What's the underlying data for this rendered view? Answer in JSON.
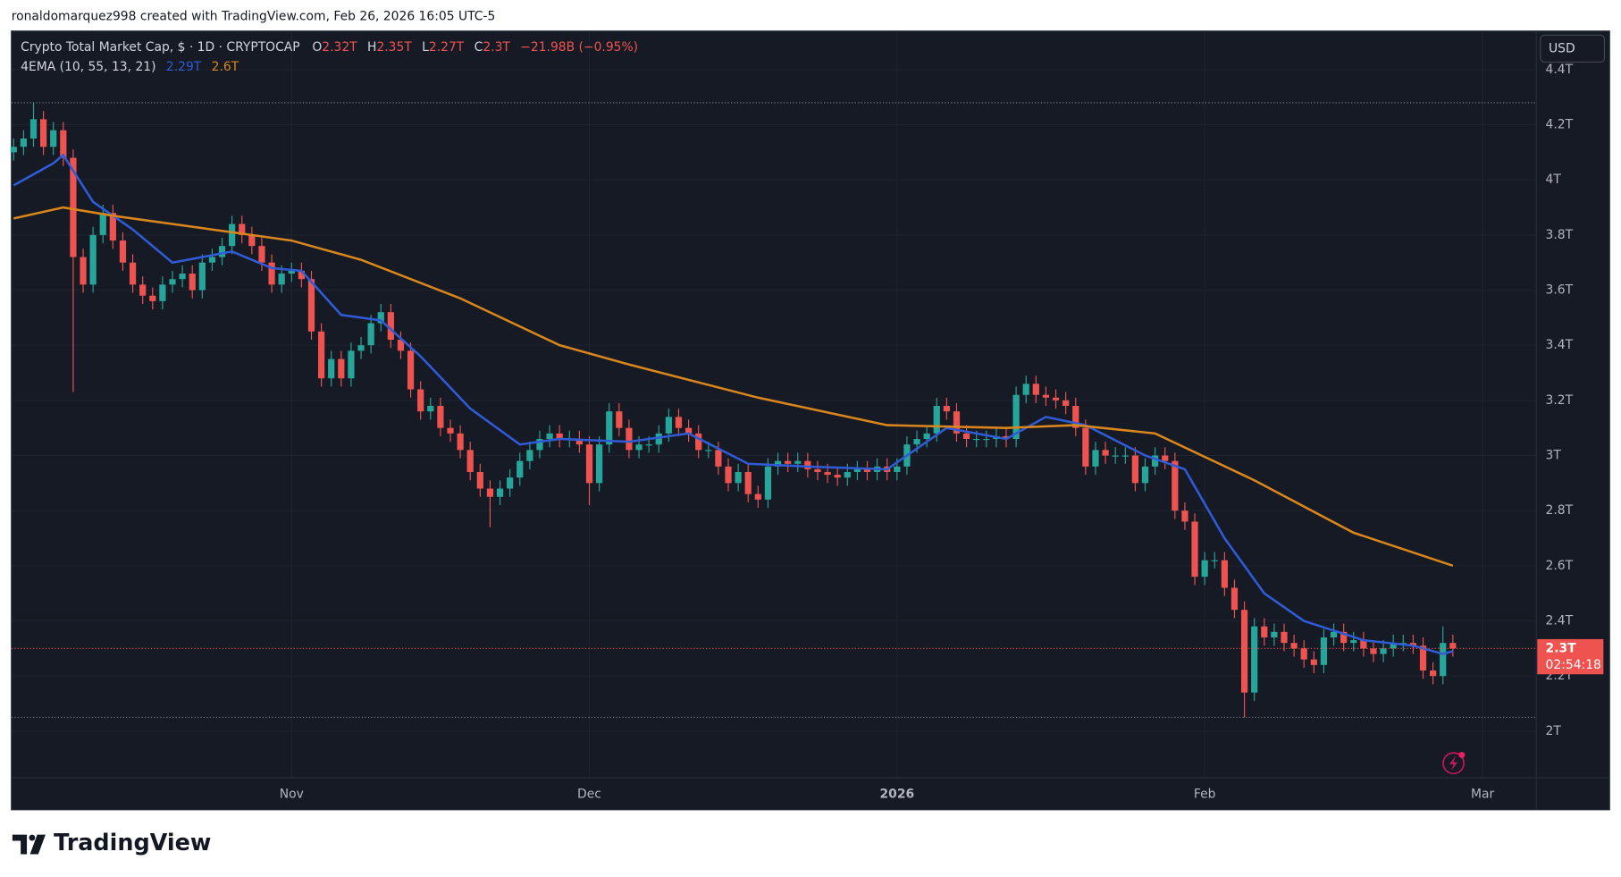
{
  "header": {
    "text": "ronaldomarquez998 created with TradingView.com, Feb 26, 2026 16:05 UTC-5"
  },
  "footer": {
    "text": "TradingView"
  },
  "chart_data": {
    "type": "candlestick",
    "title": "Crypto Total Market Cap, $ · 1D · CRYPTOCAP",
    "ohlc_legend": [
      {
        "label": "O",
        "value": "2.32T"
      },
      {
        "label": "H",
        "value": "2.35T"
      },
      {
        "label": "L",
        "value": "2.27T"
      },
      {
        "label": "C",
        "value": "2.3T"
      }
    ],
    "change": "−21.98B (−0.95%)",
    "indicator": "4EMA (10, 55, 13, 21)",
    "currency": "USD",
    "last_price_label": "2.3T",
    "countdown": "02:54:18",
    "up_color": "#26a69a",
    "down_color": "#ef5350",
    "open": [
      4.1,
      4.12,
      4.15,
      4.22,
      4.12,
      4.18,
      4.08,
      3.72,
      3.62,
      3.8,
      3.88,
      3.78,
      3.7,
      3.62,
      3.58,
      3.56,
      3.62,
      3.64,
      3.66,
      3.6,
      3.7,
      3.72,
      3.76,
      3.84,
      3.8,
      3.76,
      3.7,
      3.62,
      3.66,
      3.67,
      3.64,
      3.45,
      3.28,
      3.35,
      3.28,
      3.38,
      3.4,
      3.48,
      3.52,
      3.42,
      3.38,
      3.24,
      3.16,
      3.18,
      3.1,
      3.08,
      3.02,
      2.94,
      2.88,
      2.85,
      2.88,
      2.92,
      2.98,
      3.02,
      3.06,
      3.08,
      3.06,
      3.06,
      3.04,
      2.9,
      3.04,
      3.16,
      3.1,
      3.02,
      3.04,
      3.04,
      3.08,
      3.14,
      3.1,
      3.08,
      3.02,
      3.02,
      2.96,
      2.9,
      2.94,
      2.86,
      2.84,
      2.96,
      2.98,
      2.97,
      2.98,
      2.95,
      2.94,
      2.93,
      2.92,
      2.94,
      2.95,
      2.94,
      2.96,
      2.94,
      2.96,
      3.04,
      3.06,
      3.08,
      3.18,
      3.16,
      3.08,
      3.06,
      3.06,
      3.06,
      3.07,
      3.06,
      3.22,
      3.26,
      3.22,
      3.21,
      3.2,
      3.18,
      3.1,
      2.96,
      3.02,
      3.0,
      3.0,
      3.0,
      2.9,
      2.96,
      3.0,
      2.98,
      2.8,
      2.76,
      2.56,
      2.62,
      2.62,
      2.52,
      2.44,
      2.14,
      2.38,
      2.34,
      2.36,
      2.32,
      2.3,
      2.26,
      2.24,
      2.34,
      2.36,
      2.32,
      2.33,
      2.3,
      2.28,
      2.3,
      2.32,
      2.32,
      2.31,
      2.22,
      2.2,
      2.32
    ],
    "high": [
      4.15,
      4.18,
      4.28,
      4.25,
      4.21,
      4.21,
      4.11,
      3.75,
      3.83,
      3.91,
      3.91,
      3.81,
      3.73,
      3.65,
      3.61,
      3.65,
      3.67,
      3.69,
      3.69,
      3.73,
      3.75,
      3.79,
      3.87,
      3.87,
      3.83,
      3.79,
      3.73,
      3.69,
      3.7,
      3.7,
      3.67,
      3.48,
      3.38,
      3.38,
      3.41,
      3.43,
      3.51,
      3.55,
      3.55,
      3.45,
      3.41,
      3.27,
      3.21,
      3.21,
      3.13,
      3.11,
      3.05,
      2.97,
      2.91,
      2.91,
      2.95,
      3.01,
      3.05,
      3.09,
      3.11,
      3.11,
      3.09,
      3.09,
      3.07,
      3.07,
      3.19,
      3.19,
      3.13,
      3.07,
      3.07,
      3.11,
      3.17,
      3.17,
      3.13,
      3.11,
      3.05,
      3.05,
      2.99,
      2.97,
      2.97,
      2.89,
      2.99,
      3.01,
      3.01,
      3.01,
      3.01,
      2.98,
      2.97,
      2.96,
      2.97,
      2.98,
      2.98,
      2.99,
      2.99,
      2.99,
      3.07,
      3.09,
      3.11,
      3.21,
      3.21,
      3.19,
      3.11,
      3.09,
      3.09,
      3.1,
      3.1,
      3.25,
      3.29,
      3.29,
      3.25,
      3.24,
      3.23,
      3.21,
      3.13,
      3.05,
      3.05,
      3.03,
      3.03,
      3.03,
      2.99,
      3.03,
      3.03,
      3.01,
      2.83,
      2.79,
      2.65,
      2.65,
      2.65,
      2.55,
      2.47,
      2.41,
      2.41,
      2.39,
      2.39,
      2.35,
      2.33,
      2.29,
      2.37,
      2.39,
      2.39,
      2.36,
      2.36,
      2.33,
      2.33,
      2.35,
      2.35,
      2.35,
      2.34,
      2.25,
      2.38,
      2.35
    ],
    "low": [
      4.07,
      4.09,
      4.12,
      4.09,
      4.09,
      4.05,
      3.23,
      3.59,
      3.59,
      3.77,
      3.75,
      3.67,
      3.59,
      3.55,
      3.53,
      3.53,
      3.59,
      3.61,
      3.57,
      3.57,
      3.67,
      3.69,
      3.73,
      3.77,
      3.73,
      3.67,
      3.59,
      3.59,
      3.63,
      3.61,
      3.42,
      3.25,
      3.25,
      3.25,
      3.25,
      3.35,
      3.37,
      3.45,
      3.39,
      3.35,
      3.21,
      3.13,
      3.13,
      3.07,
      3.05,
      2.99,
      2.91,
      2.85,
      2.74,
      2.82,
      2.85,
      2.89,
      2.95,
      2.99,
      3.03,
      3.03,
      3.03,
      3.01,
      2.82,
      2.87,
      3.01,
      3.07,
      2.99,
      2.99,
      3.01,
      3.01,
      3.05,
      3.07,
      3.05,
      2.99,
      2.99,
      2.93,
      2.87,
      2.87,
      2.83,
      2.81,
      2.81,
      2.93,
      2.94,
      2.94,
      2.92,
      2.91,
      2.9,
      2.89,
      2.89,
      2.91,
      2.91,
      2.91,
      2.91,
      2.91,
      2.93,
      3.01,
      3.03,
      3.05,
      3.13,
      3.05,
      3.03,
      3.03,
      3.03,
      3.03,
      3.03,
      3.03,
      3.19,
      3.19,
      3.18,
      3.17,
      3.15,
      3.07,
      2.93,
      2.93,
      2.97,
      2.97,
      2.97,
      2.87,
      2.87,
      2.93,
      2.95,
      2.77,
      2.73,
      2.53,
      2.53,
      2.59,
      2.49,
      2.41,
      2.05,
      2.11,
      2.31,
      2.31,
      2.29,
      2.27,
      2.23,
      2.21,
      2.21,
      2.31,
      2.29,
      2.29,
      2.27,
      2.25,
      2.25,
      2.27,
      2.29,
      2.28,
      2.19,
      2.17,
      2.17,
      2.27
    ],
    "close": [
      4.12,
      4.15,
      4.22,
      4.12,
      4.18,
      4.08,
      3.72,
      3.62,
      3.8,
      3.88,
      3.78,
      3.7,
      3.62,
      3.58,
      3.56,
      3.62,
      3.64,
      3.66,
      3.6,
      3.7,
      3.72,
      3.76,
      3.84,
      3.8,
      3.76,
      3.7,
      3.62,
      3.66,
      3.67,
      3.64,
      3.45,
      3.28,
      3.35,
      3.28,
      3.38,
      3.4,
      3.48,
      3.52,
      3.42,
      3.38,
      3.24,
      3.16,
      3.18,
      3.1,
      3.08,
      3.02,
      2.94,
      2.88,
      2.85,
      2.88,
      2.92,
      2.98,
      3.02,
      3.06,
      3.08,
      3.06,
      3.06,
      3.04,
      2.9,
      3.04,
      3.16,
      3.1,
      3.02,
      3.04,
      3.04,
      3.08,
      3.14,
      3.1,
      3.08,
      3.02,
      3.02,
      2.96,
      2.9,
      2.94,
      2.86,
      2.84,
      2.96,
      2.98,
      2.97,
      2.98,
      2.95,
      2.94,
      2.93,
      2.92,
      2.94,
      2.95,
      2.94,
      2.96,
      2.94,
      2.96,
      3.04,
      3.06,
      3.08,
      3.18,
      3.16,
      3.08,
      3.06,
      3.06,
      3.06,
      3.07,
      3.06,
      3.22,
      3.26,
      3.22,
      3.21,
      3.2,
      3.18,
      3.1,
      2.96,
      3.02,
      3.0,
      3.0,
      3.0,
      2.9,
      2.96,
      3.0,
      2.98,
      2.8,
      2.76,
      2.56,
      2.62,
      2.62,
      2.52,
      2.44,
      2.14,
      2.38,
      2.34,
      2.36,
      2.32,
      2.3,
      2.26,
      2.24,
      2.34,
      2.36,
      2.32,
      2.33,
      2.3,
      2.28,
      2.3,
      2.32,
      2.32,
      2.31,
      2.22,
      2.2,
      2.32,
      2.3
    ],
    "series": [
      {
        "color": "#2f5bd6",
        "value_label": "2.29T",
        "x": [
          0,
          4,
          5,
          8,
          12,
          16,
          22,
          26,
          29,
          33,
          37,
          41,
          46,
          51,
          55,
          62,
          68,
          74,
          80,
          88,
          94,
          100,
          104,
          108,
          114,
          118,
          122,
          126,
          130,
          136,
          141,
          144,
          145
        ],
        "values": [
          3.98,
          4.06,
          4.09,
          3.92,
          3.82,
          3.7,
          3.74,
          3.68,
          3.67,
          3.51,
          3.49,
          3.36,
          3.17,
          3.04,
          3.06,
          3.05,
          3.08,
          2.97,
          2.96,
          2.95,
          3.1,
          3.06,
          3.14,
          3.11,
          3.0,
          2.95,
          2.7,
          2.5,
          2.4,
          2.33,
          2.31,
          2.28,
          2.29
        ]
      },
      {
        "color": "#d9861c",
        "value_label": "2.6T",
        "x": [
          0,
          5,
          10,
          20,
          28,
          35,
          45,
          55,
          62,
          75,
          88,
          100,
          107,
          115,
          125,
          135,
          145
        ],
        "values": [
          3.86,
          3.9,
          3.87,
          3.82,
          3.78,
          3.71,
          3.57,
          3.4,
          3.33,
          3.21,
          3.11,
          3.1,
          3.11,
          3.08,
          2.91,
          2.72,
          2.6
        ]
      }
    ],
    "ylim": [
      1.831,
      4.54
    ],
    "yticks": [
      {
        "value": 2,
        "label": "2T"
      },
      {
        "value": 2.2,
        "label": "2.2T"
      },
      {
        "value": 2.4,
        "label": "2.4T"
      },
      {
        "value": 2.6,
        "label": "2.6T"
      },
      {
        "value": 2.8,
        "label": "2.8T"
      },
      {
        "value": 3,
        "label": "3T"
      },
      {
        "value": 3.2,
        "label": "3.2T"
      },
      {
        "value": 3.4,
        "label": "3.4T"
      },
      {
        "value": 3.6,
        "label": "3.6T"
      },
      {
        "value": 3.8,
        "label": "3.8T"
      },
      {
        "value": 4,
        "label": "4T"
      },
      {
        "value": 4.2,
        "label": "4.2T"
      },
      {
        "value": 4.4,
        "label": "4.4T"
      }
    ],
    "xlim": [
      -0.23,
      153.4
    ],
    "xticks": [
      {
        "value": 28,
        "label": "Nov"
      },
      {
        "value": 58,
        "label": "Dec"
      },
      {
        "value": 89,
        "label": "2026"
      },
      {
        "value": 120,
        "label": "Feb"
      },
      {
        "value": 148,
        "label": "Mar"
      }
    ],
    "grid": true
  }
}
